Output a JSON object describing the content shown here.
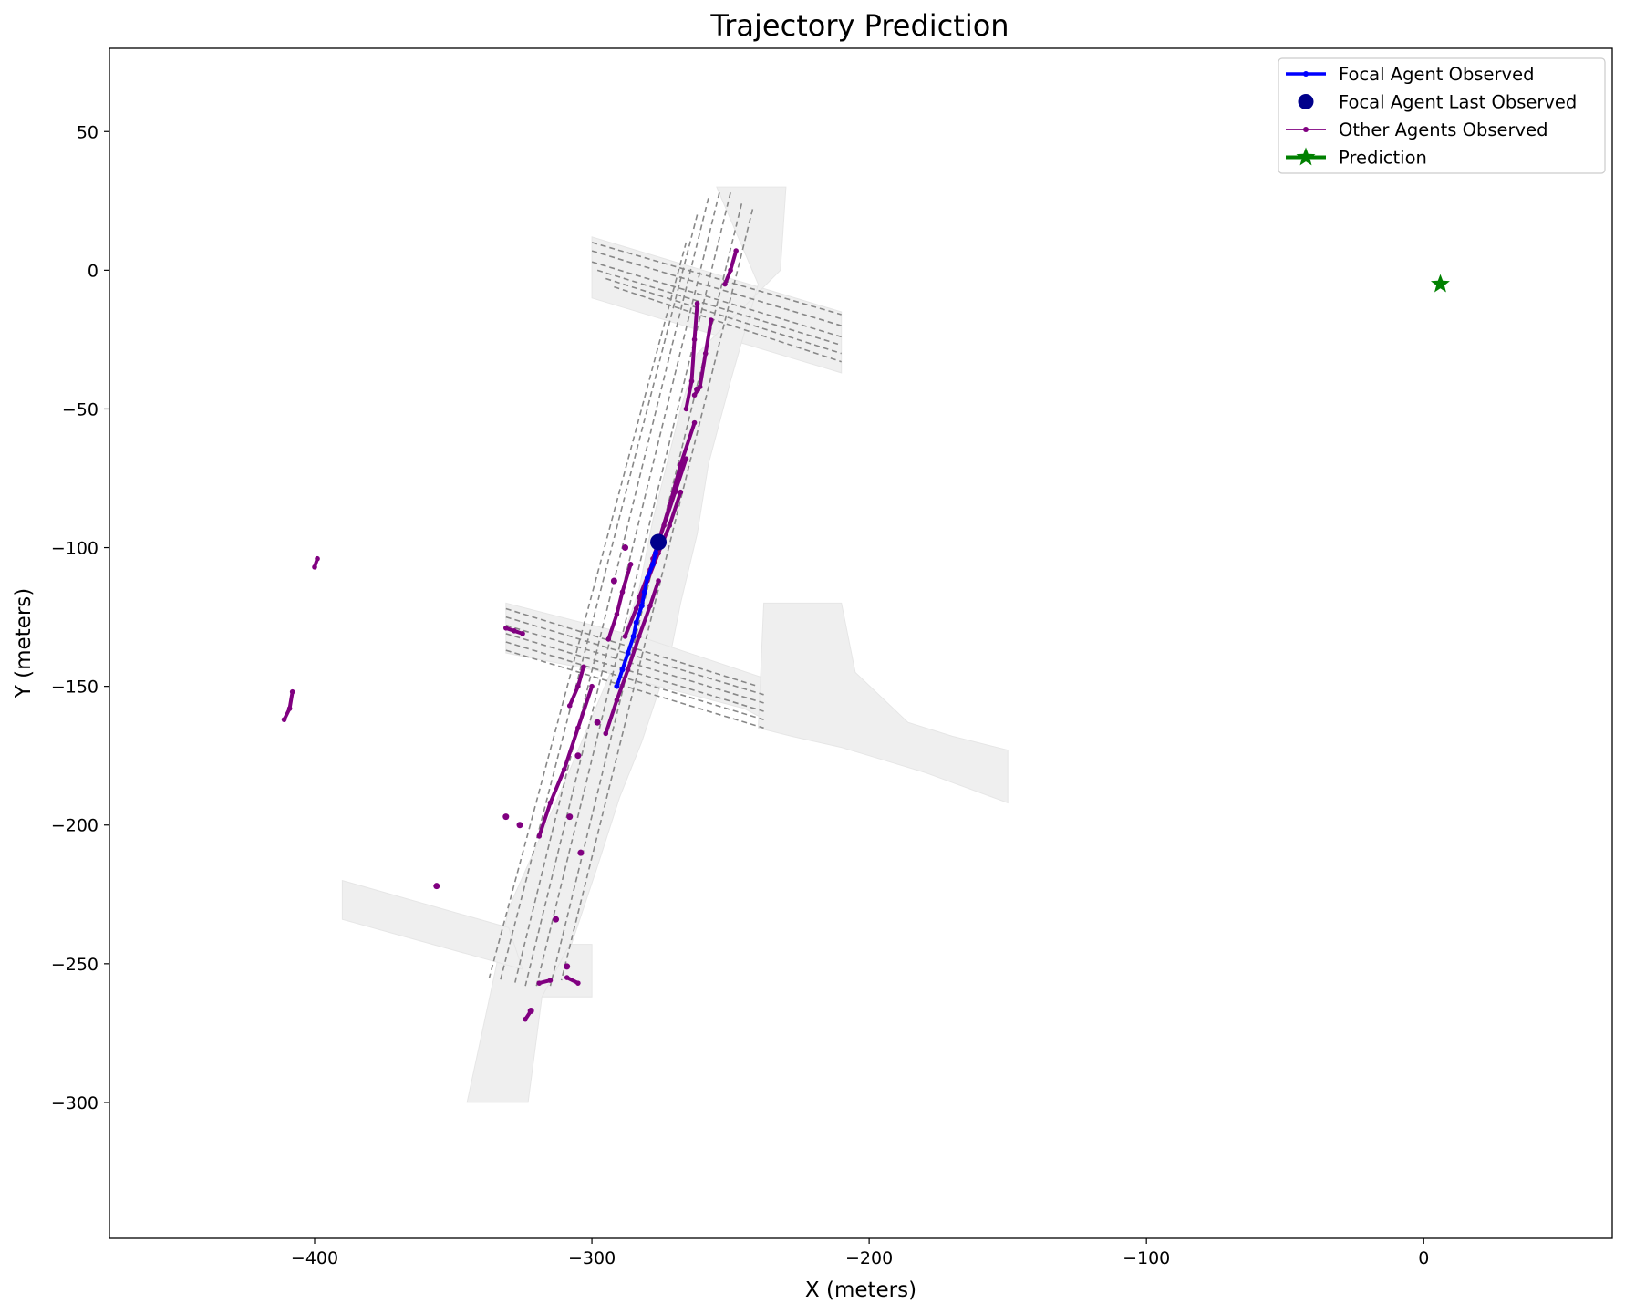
{
  "chart_data": {
    "type": "line",
    "title": "Trajectory Prediction",
    "xlabel": "X (meters)",
    "ylabel": "Y (meters)",
    "xlim": [
      -474,
      68
    ],
    "ylim": [
      -349,
      80
    ],
    "xticks": [
      -400,
      -300,
      -200,
      -100,
      0
    ],
    "yticks": [
      50,
      0,
      -50,
      -100,
      -150,
      -200,
      -250,
      -300
    ],
    "tick_labels": {
      "x": [
        "−400",
        "−300",
        "−200",
        "−100",
        "0"
      ],
      "y": [
        "50",
        "0",
        "−50",
        "−100",
        "−150",
        "−200",
        "−250",
        "−300"
      ]
    },
    "grid": false,
    "legend_position": "top-right",
    "legend": [
      {
        "label": "Focal Agent Observed",
        "color": "#0000ff",
        "marker": "line-dot"
      },
      {
        "label": "Focal Agent Last Observed",
        "color": "#00008b",
        "marker": "circle"
      },
      {
        "label": "Other Agents Observed",
        "color": "#800080",
        "marker": "line-dot"
      },
      {
        "label": "Prediction",
        "color": "#008000",
        "marker": "star"
      }
    ],
    "map_areas": [
      [
        [
          -300,
          12
        ],
        [
          -210,
          -15
        ],
        [
          -210,
          -37
        ],
        [
          -300,
          -10
        ]
      ],
      [
        [
          -255,
          30
        ],
        [
          -230,
          30
        ],
        [
          -232,
          0
        ],
        [
          -262,
          -30
        ],
        [
          -268,
          -50
        ],
        [
          -278,
          -90
        ],
        [
          -283,
          -115
        ],
        [
          -292,
          -142
        ],
        [
          -310,
          -185
        ],
        [
          -330,
          -230
        ],
        [
          -336,
          -258
        ],
        [
          -345,
          -300
        ],
        [
          -323,
          -300
        ],
        [
          -318,
          -262
        ],
        [
          -308,
          -245
        ],
        [
          -298,
          -215
        ],
        [
          -290,
          -190
        ],
        [
          -282,
          -170
        ],
        [
          -272,
          -140
        ],
        [
          -268,
          -120
        ],
        [
          -262,
          -95
        ],
        [
          -258,
          -70
        ],
        [
          -250,
          -40
        ],
        [
          -240,
          -5
        ]
      ],
      [
        [
          -331,
          -120
        ],
        [
          -280,
          -133
        ],
        [
          -238,
          -147
        ],
        [
          -230,
          -160
        ],
        [
          -230,
          -166
        ],
        [
          -245,
          -158
        ],
        [
          -295,
          -145
        ],
        [
          -331,
          -138
        ]
      ],
      [
        [
          -238,
          -120
        ],
        [
          -240,
          -165
        ],
        [
          -228,
          -168
        ],
        [
          -210,
          -172
        ],
        [
          -200,
          -175
        ],
        [
          -180,
          -181
        ],
        [
          -150,
          -192
        ],
        [
          -150,
          -173
        ],
        [
          -170,
          -168
        ],
        [
          -186,
          -163
        ],
        [
          -205,
          -145
        ],
        [
          -210,
          -120
        ]
      ],
      [
        [
          -390,
          -220
        ],
        [
          -330,
          -237
        ],
        [
          -325,
          -252
        ],
        [
          -390,
          -234
        ]
      ],
      [
        [
          -300,
          -243
        ],
        [
          -308,
          -243
        ],
        [
          -318,
          -262
        ],
        [
          -300,
          -262
        ]
      ]
    ],
    "lane_lines": [
      [
        [
          -300,
          10
        ],
        [
          -210,
          -16
        ]
      ],
      [
        [
          -300,
          7
        ],
        [
          -210,
          -20
        ]
      ],
      [
        [
          -300,
          3
        ],
        [
          -210,
          -24
        ]
      ],
      [
        [
          -298,
          0
        ],
        [
          -210,
          -27
        ]
      ],
      [
        [
          -295,
          -3
        ],
        [
          -210,
          -30
        ]
      ],
      [
        [
          -292,
          -6
        ],
        [
          -210,
          -33
        ]
      ],
      [
        [
          -250,
          28
        ],
        [
          -320,
          -258
        ]
      ],
      [
        [
          -254,
          28
        ],
        [
          -324,
          -258
        ]
      ],
      [
        [
          -258,
          26
        ],
        [
          -328,
          -258
        ]
      ],
      [
        [
          -246,
          24
        ],
        [
          -315,
          -258
        ]
      ],
      [
        [
          -242,
          22
        ],
        [
          -311,
          -256
        ]
      ],
      [
        [
          -262,
          20
        ],
        [
          -333,
          -256
        ]
      ],
      [
        [
          -266,
          10
        ],
        [
          -337,
          -255
        ]
      ],
      [
        [
          -331,
          -122
        ],
        [
          -240,
          -150
        ]
      ],
      [
        [
          -331,
          -125
        ],
        [
          -238,
          -153
        ]
      ],
      [
        [
          -331,
          -128
        ],
        [
          -238,
          -156
        ]
      ],
      [
        [
          -331,
          -131
        ],
        [
          -238,
          -159
        ]
      ],
      [
        [
          -331,
          -134
        ],
        [
          -238,
          -162
        ]
      ],
      [
        [
          -331,
          -137
        ],
        [
          -238,
          -165
        ]
      ]
    ],
    "series": [
      {
        "name": "Focal Agent Observed",
        "kind": "line-dot",
        "color": "#0000ff",
        "points": [
          [
            -291,
            -150
          ],
          [
            -289,
            -144
          ],
          [
            -287,
            -138
          ],
          [
            -285,
            -132
          ],
          [
            -284,
            -127
          ],
          [
            -282,
            -121
          ],
          [
            -281,
            -116
          ],
          [
            -280,
            -111
          ],
          [
            -278,
            -106
          ],
          [
            -277,
            -102
          ],
          [
            -276,
            -98
          ]
        ]
      },
      {
        "name": "Focal Agent Last Observed",
        "kind": "dot",
        "color": "#00008b",
        "points": [
          [
            -276,
            -98
          ]
        ]
      },
      {
        "name": "Prediction",
        "kind": "star",
        "color": "#008000",
        "points": [
          [
            6,
            -5
          ]
        ]
      }
    ],
    "other_agents": [
      [
        [
          -248,
          7
        ],
        [
          -250,
          0
        ],
        [
          -252,
          -5
        ]
      ],
      [
        [
          -262,
          -12
        ],
        [
          -263,
          -25
        ],
        [
          -264,
          -40
        ],
        [
          -266,
          -50
        ]
      ],
      [
        [
          -257,
          -18
        ],
        [
          -259,
          -30
        ],
        [
          -261,
          -42
        ],
        [
          -263,
          -45
        ]
      ],
      [
        [
          -263,
          -55
        ],
        [
          -268,
          -70
        ],
        [
          -272,
          -85
        ],
        [
          -276,
          -98
        ],
        [
          -279,
          -108
        ],
        [
          -283,
          -118
        ]
      ],
      [
        [
          -266,
          -68
        ],
        [
          -270,
          -80
        ],
        [
          -274,
          -92
        ],
        [
          -278,
          -104
        ]
      ],
      [
        [
          -268,
          -80
        ],
        [
          -272,
          -92
        ],
        [
          -276,
          -102
        ],
        [
          -280,
          -112
        ],
        [
          -284,
          -122
        ],
        [
          -288,
          -132
        ]
      ],
      [
        [
          -276,
          -112
        ],
        [
          -279,
          -121
        ],
        [
          -283,
          -132
        ],
        [
          -287,
          -144
        ],
        [
          -291,
          -155
        ],
        [
          -295,
          -167
        ]
      ],
      [
        [
          -286,
          -106
        ],
        [
          -289,
          -116
        ],
        [
          -291,
          -124
        ],
        [
          -294,
          -133
        ]
      ],
      [
        [
          -300,
          -150
        ],
        [
          -305,
          -165
        ],
        [
          -310,
          -180
        ],
        [
          -315,
          -192
        ],
        [
          -319,
          -204
        ]
      ],
      [
        [
          -303,
          -143
        ],
        [
          -305,
          -150
        ],
        [
          -308,
          -157
        ]
      ],
      [
        [
          -331,
          -129
        ],
        [
          -328,
          -130
        ],
        [
          -325,
          -131
        ]
      ],
      [
        [
          -399,
          -104
        ],
        [
          -400,
          -107
        ]
      ],
      [
        [
          -408,
          -152
        ],
        [
          -409,
          -158
        ],
        [
          -411,
          -162
        ]
      ],
      [
        [
          -324,
          -270
        ],
        [
          -322,
          -267
        ]
      ],
      [
        [
          -315,
          -256
        ],
        [
          -319,
          -257
        ]
      ],
      [
        [
          -309,
          -255
        ],
        [
          -305,
          -257
        ]
      ]
    ],
    "other_agent_dots": [
      [
        -356,
        -222
      ],
      [
        -331,
        -197
      ],
      [
        -326,
        -200
      ],
      [
        -308,
        -197
      ],
      [
        -304,
        -210
      ],
      [
        -305,
        -175
      ],
      [
        -298,
        -163
      ],
      [
        -288,
        -100
      ],
      [
        -292,
        -112
      ],
      [
        -262,
        -43
      ],
      [
        -313,
        -234
      ],
      [
        -309,
        -251
      ],
      [
        -322,
        -267
      ]
    ]
  }
}
